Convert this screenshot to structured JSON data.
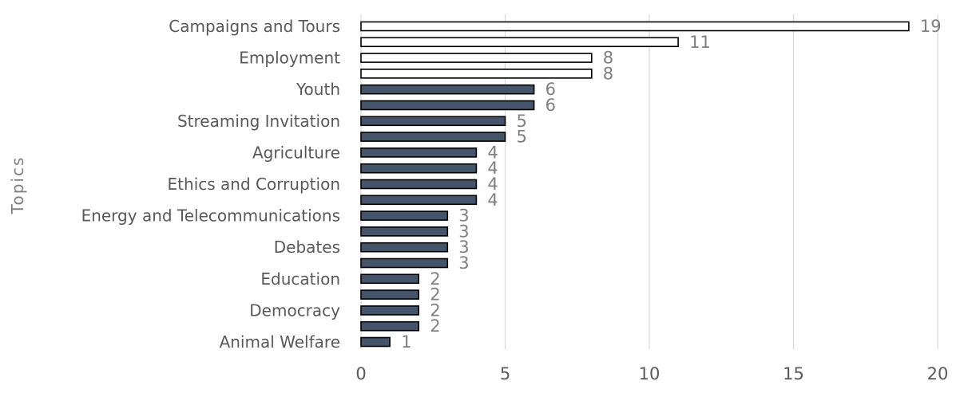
{
  "chart_data": {
    "type": "bar",
    "orientation": "horizontal",
    "ylabel": "Topics",
    "xlabel": "",
    "xlim": [
      0,
      20
    ],
    "x_ticks": [
      0,
      5,
      10,
      15,
      20
    ],
    "grid": true,
    "legend": "none",
    "colors": {
      "highlight": "#ffffff",
      "default": "#44546a",
      "outline": "#000000",
      "grid": "#d9d9d9"
    },
    "bars": [
      {
        "value": 19,
        "label": "Campaigns and Tours",
        "highlight": true
      },
      {
        "value": 11,
        "label": "",
        "highlight": true
      },
      {
        "value": 8,
        "label": "Employment",
        "highlight": true
      },
      {
        "value": 8,
        "label": "",
        "highlight": true
      },
      {
        "value": 6,
        "label": "Youth",
        "highlight": false
      },
      {
        "value": 6,
        "label": "",
        "highlight": false
      },
      {
        "value": 5,
        "label": "Streaming Invitation",
        "highlight": false
      },
      {
        "value": 5,
        "label": "",
        "highlight": false
      },
      {
        "value": 4,
        "label": "Agriculture",
        "highlight": false
      },
      {
        "value": 4,
        "label": "",
        "highlight": false
      },
      {
        "value": 4,
        "label": "Ethics and Corruption",
        "highlight": false
      },
      {
        "value": 4,
        "label": "",
        "highlight": false
      },
      {
        "value": 3,
        "label": "Energy and Telecommunications",
        "highlight": false
      },
      {
        "value": 3,
        "label": "",
        "highlight": false
      },
      {
        "value": 3,
        "label": "Debates",
        "highlight": false
      },
      {
        "value": 3,
        "label": "",
        "highlight": false
      },
      {
        "value": 2,
        "label": "Education",
        "highlight": false
      },
      {
        "value": 2,
        "label": "",
        "highlight": false
      },
      {
        "value": 2,
        "label": "Democracy",
        "highlight": false
      },
      {
        "value": 2,
        "label": "",
        "highlight": false
      },
      {
        "value": 1,
        "label": "Animal Welfare",
        "highlight": false
      }
    ]
  }
}
